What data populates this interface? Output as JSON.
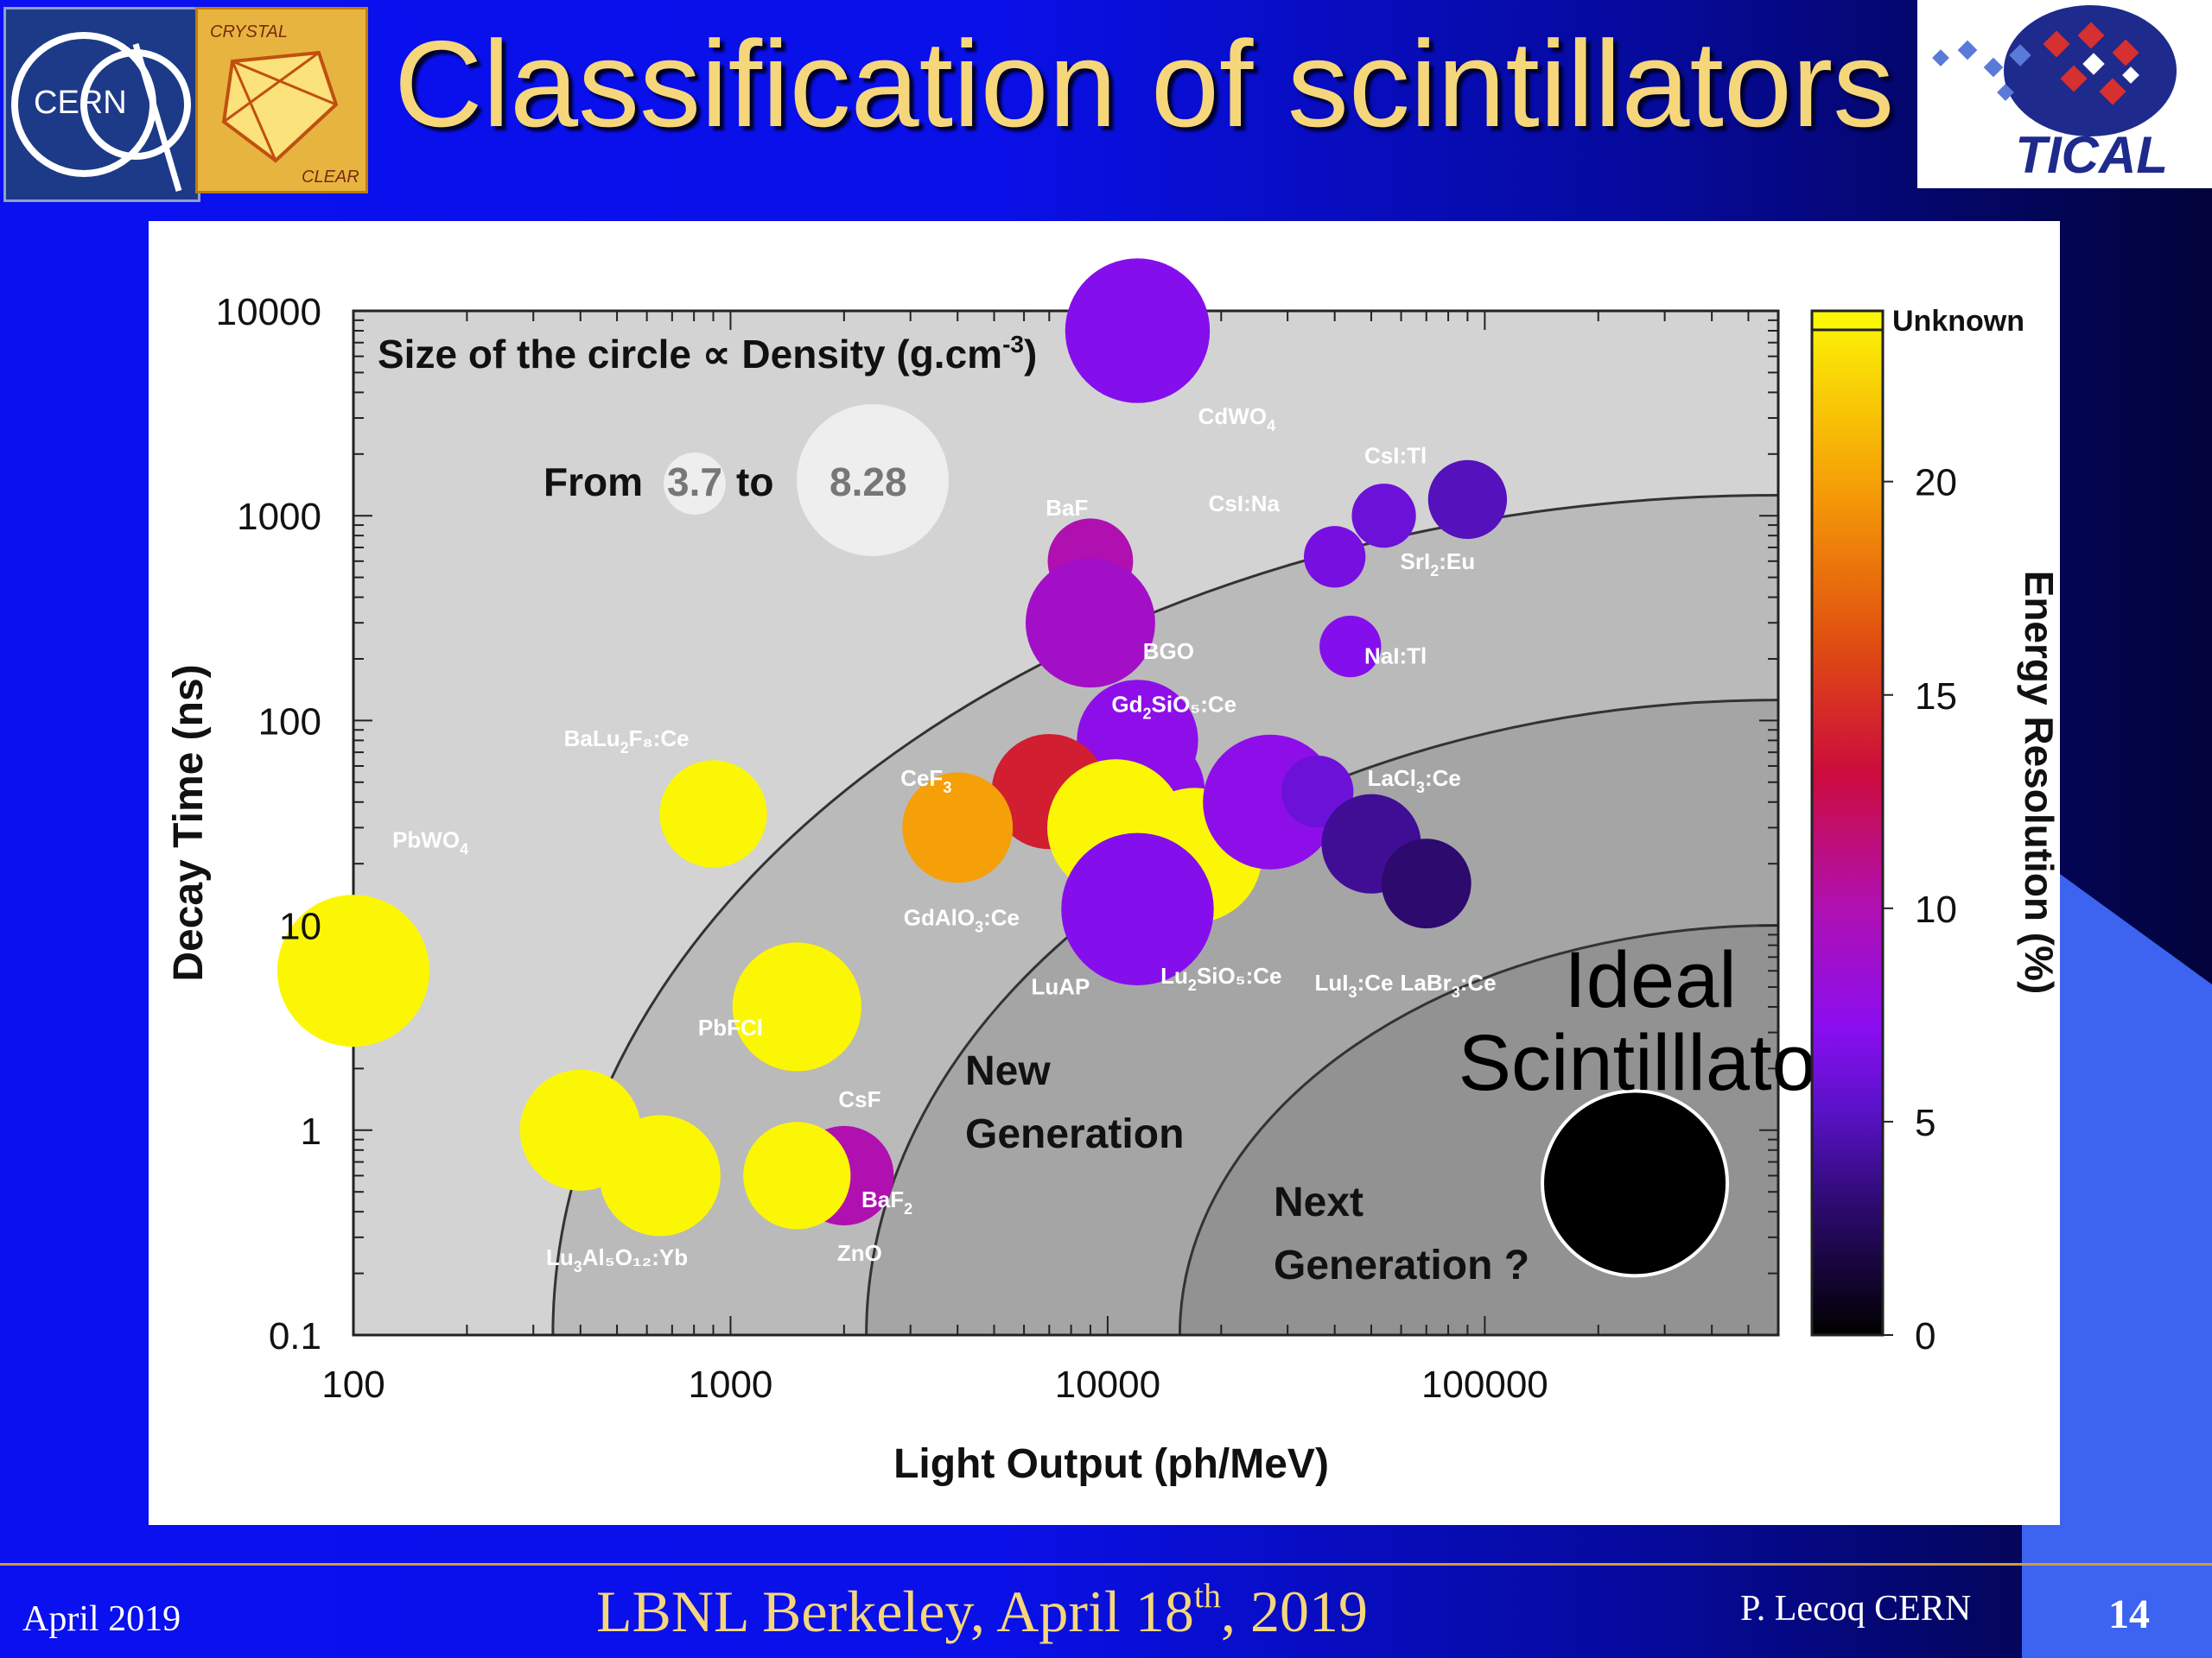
{
  "slide": {
    "title": "Classification of scintillators",
    "footer": {
      "date": "April 2019",
      "event": "LBNL Berkeley, April 18",
      "event_sup": "th",
      "event_tail": ", 2019",
      "author": "P. Lecoq  CERN",
      "page": "14"
    },
    "logos": {
      "cern": "CERN",
      "crystal_top": "CRYSTAL",
      "crystal_bottom": "CLEAR",
      "tical": "TICAL"
    }
  },
  "chart_data": {
    "type": "scatter",
    "xlabel": "Light Output (ph/MeV)",
    "ylabel": "Decay Time (ns)",
    "colorbar_label": "Energy Resolution (%)",
    "x_scale": "log",
    "y_scale": "log",
    "xlim": [
      100,
      600000
    ],
    "ylim": [
      0.1,
      10000
    ],
    "x_ticks": [
      "100",
      "1000",
      "10000",
      "100000"
    ],
    "y_ticks": [
      "0.1",
      "1",
      "10",
      "100",
      "1000",
      "10000"
    ],
    "colorbar_ticks": [
      "0",
      "5",
      "10",
      "15",
      "20"
    ],
    "colorbar_unknown_label": "Unknown",
    "colorbar_range": [
      0,
      24
    ],
    "size_note_title": "Size of the circle ∝ Density (g.cm",
    "size_note_sup": "-3",
    "size_note_close": ")",
    "size_legend": {
      "from_label": "From",
      "to_label": "to",
      "min_density": "3.7",
      "max_density": "8.28"
    },
    "regions": [
      {
        "label_lines": [
          "New",
          "Generation"
        ]
      },
      {
        "label_lines": [
          "Next",
          "Generation ?"
        ]
      }
    ],
    "ideal": {
      "label_lines": [
        "Ideal",
        "Scintilllator"
      ],
      "x": 250000,
      "y": 0.55,
      "color": "#000000"
    },
    "points": [
      {
        "x": 12000,
        "y": 8000,
        "density": 7.9,
        "energy_resolution": 7
      },
      {
        "x": 9000,
        "y": 600,
        "density": 4.88,
        "energy_resolution": 10
      },
      {
        "x": 9000,
        "y": 300,
        "density": 7.13,
        "energy_resolution": 9
      },
      {
        "x": 40000,
        "y": 630,
        "density": 3.67,
        "energy_resolution": 6.5
      },
      {
        "x": 54000,
        "y": 1000,
        "density": 3.8,
        "energy_resolution": 6
      },
      {
        "x": 90000,
        "y": 1200,
        "density": 4.55,
        "energy_resolution": 5
      },
      {
        "x": 44000,
        "y": 230,
        "density": 3.67,
        "energy_resolution": 7
      },
      {
        "x": 12000,
        "y": 80,
        "density": 6.71,
        "energy_resolution": 7.5
      },
      {
        "x": 12500,
        "y": 45,
        "density": 6.71,
        "energy_resolution": 7.5
      },
      {
        "x": 7000,
        "y": 45,
        "density": 6.4,
        "energy_resolution": 14
      },
      {
        "x": 4000,
        "y": 30,
        "density": 6.16,
        "energy_resolution": 20
      },
      {
        "x": 900,
        "y": 35,
        "density": 6.0,
        "energy_resolution": "unknown"
      },
      {
        "x": 100,
        "y": 6,
        "density": 8.28,
        "energy_resolution": "unknown"
      },
      {
        "x": 10500,
        "y": 30,
        "density": 7.5,
        "energy_resolution": "unknown"
      },
      {
        "x": 17000,
        "y": 22,
        "density": 7.4,
        "energy_resolution": "unknown"
      },
      {
        "x": 12000,
        "y": 12,
        "density": 8.3,
        "energy_resolution": 7
      },
      {
        "x": 27000,
        "y": 40,
        "density": 7.4,
        "energy_resolution": 7.5
      },
      {
        "x": 36000,
        "y": 45,
        "density": 4.2,
        "energy_resolution": 6
      },
      {
        "x": 50000,
        "y": 25,
        "density": 5.6,
        "energy_resolution": 4
      },
      {
        "x": 70000,
        "y": 16,
        "density": 5.1,
        "energy_resolution": 3
      },
      {
        "x": 1500,
        "y": 4,
        "density": 7.1,
        "energy_resolution": 20
      },
      {
        "x": 1500,
        "y": 4,
        "density": 7.1,
        "energy_resolution": "unknown"
      },
      {
        "x": 400,
        "y": 1,
        "density": 6.7,
        "energy_resolution": "unknown"
      },
      {
        "x": 650,
        "y": 0.6,
        "density": 6.7,
        "energy_resolution": "unknown"
      },
      {
        "x": 2000,
        "y": 0.6,
        "density": 5.6,
        "energy_resolution": 10
      },
      {
        "x": 1500,
        "y": 0.6,
        "density": 6.0,
        "energy_resolution": "unknown"
      }
    ],
    "point_labels": [
      {
        "text": "CdWO",
        "sub": "4",
        "tail": "",
        "x": 22000,
        "y": 2800
      },
      {
        "text": "CsI:Tl",
        "sub": "",
        "tail": "",
        "x": 58000,
        "y": 1800
      },
      {
        "text": "BaF",
        "sub": "",
        "tail": "",
        "x": 7800,
        "y": 1000
      },
      {
        "text": "CsI:Na",
        "sub": "",
        "tail": "",
        "x": 23000,
        "y": 1050
      },
      {
        "text": "SrI",
        "sub": "2",
        "tail": ":Eu",
        "x": 75000,
        "y": 550
      },
      {
        "text": "BGO",
        "sub": "",
        "tail": "",
        "x": 14500,
        "y": 200
      },
      {
        "text": "NaI:Tl",
        "sub": "",
        "tail": "",
        "x": 58000,
        "y": 190
      },
      {
        "text": "Gd",
        "sub": "2",
        "tail": "SiO₅:Ce",
        "x": 15000,
        "y": 110
      },
      {
        "text": "BaLu",
        "sub": "2",
        "tail": "F₈:Ce",
        "x": 530,
        "y": 75
      },
      {
        "text": "CeF",
        "sub": "3",
        "tail": "",
        "x": 3300,
        "y": 48
      },
      {
        "text": "LaCl",
        "sub": "3",
        "tail": ":Ce",
        "x": 65000,
        "y": 48
      },
      {
        "text": "PbWO",
        "sub": "4",
        "tail": "",
        "x": 160,
        "y": 24
      },
      {
        "text": "GdAlO",
        "sub": "3",
        "tail": ":Ce",
        "x": 4100,
        "y": 10
      },
      {
        "text": "LuAP",
        "sub": "",
        "tail": "",
        "x": 7500,
        "y": 4.6
      },
      {
        "text": "Lu",
        "sub": "2",
        "tail": "SiO₅:Ce",
        "x": 20000,
        "y": 5.2
      },
      {
        "text": "LuI",
        "sub": "3",
        "tail": ":Ce",
        "x": 45000,
        "y": 4.8
      },
      {
        "text": "LaBr",
        "sub": "3",
        "tail": ":Ce",
        "x": 80000,
        "y": 4.8
      },
      {
        "text": "PbFCl",
        "sub": "",
        "tail": "",
        "x": 1000,
        "y": 2.9
      },
      {
        "text": "CsF",
        "sub": "",
        "tail": "",
        "x": 2200,
        "y": 1.3
      },
      {
        "text": "BaF",
        "sub": "2",
        "tail": "",
        "x": 2600,
        "y": 0.42
      },
      {
        "text": "ZnO",
        "sub": "",
        "tail": "",
        "x": 2200,
        "y": 0.23
      },
      {
        "text": "Lu",
        "sub": "3",
        "tail": "Al₅O₁₂:Yb",
        "x": 500,
        "y": 0.22
      }
    ],
    "colors": {
      "unknown": "#fbf704",
      "panel_bg": "#ffffff",
      "plot_bg_outer": "#d3d3d3",
      "plot_bg_mid": "#bababa",
      "plot_bg_inner": "#a5a5a5",
      "plot_bg_core": "#929292",
      "size_legend_circle": "#eeeeee"
    }
  }
}
